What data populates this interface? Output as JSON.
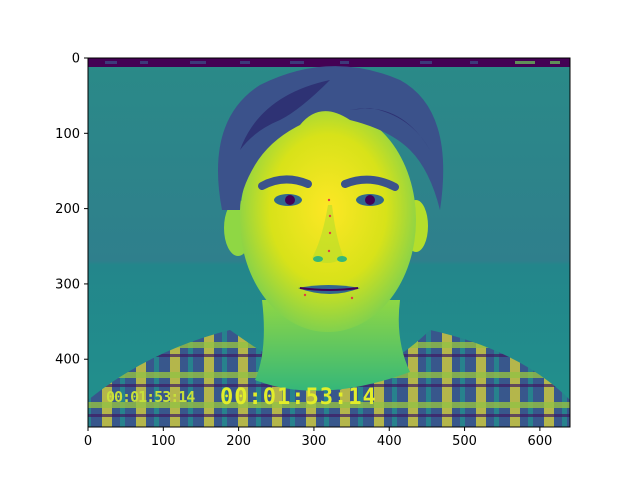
{
  "image": {
    "subject": "portrait-photo",
    "colormap": "viridis",
    "x_range": [
      0,
      640
    ],
    "y_range": [
      0,
      490
    ],
    "x_ticks": [
      0,
      100,
      200,
      300,
      400,
      500,
      600
    ],
    "y_ticks": [
      0,
      100,
      200,
      300,
      400
    ],
    "overlay_timestamp_small": "00:01:53:14",
    "overlay_timestamp_large": "00:01:53:14",
    "landmark_color": "#e04040"
  },
  "colors": {
    "viridis_dark": "#440154",
    "viridis_blue": "#31688e",
    "viridis_teal": "#21918c",
    "viridis_green": "#35b779",
    "viridis_yellow": "#fde725"
  }
}
